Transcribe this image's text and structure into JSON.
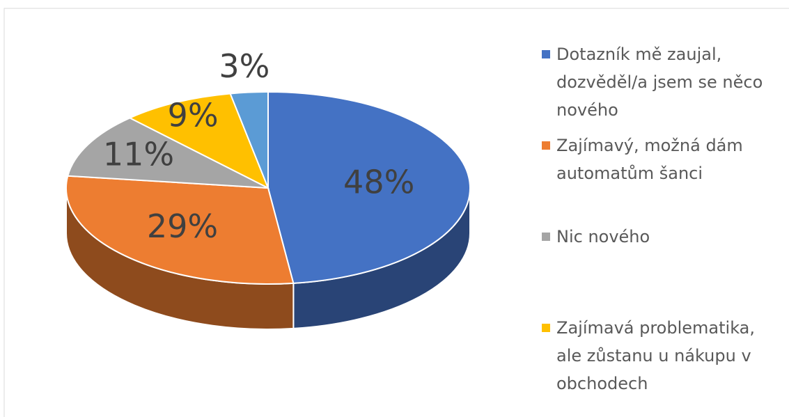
{
  "chart_data": {
    "type": "pie3d",
    "categories": [
      "Dotazník mě zaujal, dozvěděl/a jsem se něco nového",
      "Zajímavý, možná dám automatům šanci",
      "Nic nového",
      "Zajímavá problematika, ale zůstanu u nákupu v obchodech",
      null
    ],
    "values": [
      48,
      29,
      11,
      9,
      3
    ],
    "value_labels": [
      "48%",
      "29%",
      "11%",
      "9%",
      "3%"
    ],
    "colors": [
      "#4472c4",
      "#ed7d31",
      "#a5a5a5",
      "#ffc000",
      "#5b9bd5"
    ],
    "legend": "right"
  }
}
